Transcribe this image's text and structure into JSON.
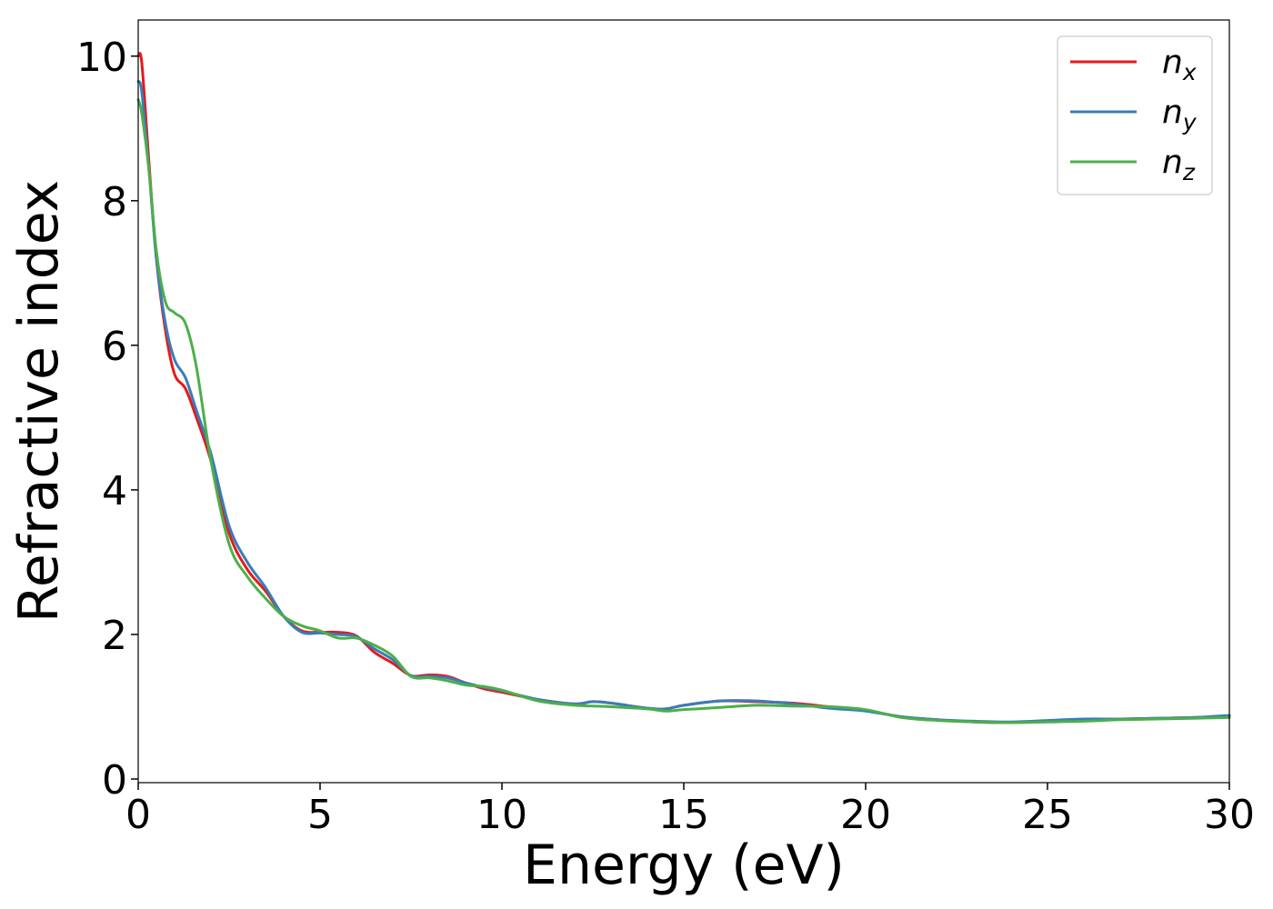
{
  "chart_data": {
    "type": "line",
    "xlabel": "Energy (eV)",
    "ylabel": "Refractive index",
    "xlim": [
      0,
      30
    ],
    "ylim": [
      -0.05,
      10.5
    ],
    "xticks": [
      0,
      5,
      10,
      15,
      20,
      25,
      30
    ],
    "yticks": [
      0,
      2,
      4,
      6,
      8,
      10
    ],
    "x_tick_labels": [
      "0",
      "5",
      "10",
      "15",
      "20",
      "25",
      "30"
    ],
    "y_tick_labels": [
      "0",
      "2",
      "4",
      "6",
      "8",
      "10"
    ],
    "grid": false,
    "legend_position": "top-right",
    "series": [
      {
        "name": "n",
        "subscript": "x",
        "color": "#e41a1c",
        "x": [
          0,
          0.1,
          0.3,
          0.5,
          0.75,
          1.0,
          1.3,
          1.6,
          2.0,
          2.5,
          3.0,
          3.5,
          4.0,
          4.5,
          5.0,
          5.5,
          6.0,
          6.5,
          7.0,
          7.5,
          8.0,
          8.5,
          9.0,
          9.5,
          10.0,
          11.0,
          12.0,
          12.5,
          13.0,
          14.0,
          14.5,
          15.0,
          16.0,
          17.0,
          18.0,
          19.0,
          20.0,
          21.0,
          22.0,
          23.0,
          24.0,
          25.0,
          26.0,
          27.0,
          28.0,
          29.0,
          30.0
        ],
        "y": [
          10.0,
          9.9,
          8.5,
          7.2,
          6.2,
          5.6,
          5.4,
          5.0,
          4.4,
          3.4,
          2.9,
          2.6,
          2.25,
          2.05,
          2.03,
          2.03,
          1.98,
          1.75,
          1.6,
          1.43,
          1.44,
          1.42,
          1.33,
          1.25,
          1.2,
          1.1,
          1.04,
          1.07,
          1.05,
          0.98,
          0.97,
          1.02,
          1.08,
          1.07,
          1.05,
          1.0,
          0.95,
          0.86,
          0.82,
          0.79,
          0.78,
          0.8,
          0.82,
          0.83,
          0.84,
          0.85,
          0.87
        ]
      },
      {
        "name": "n",
        "subscript": "y",
        "color": "#377eb8",
        "x": [
          0,
          0.1,
          0.3,
          0.5,
          0.75,
          1.0,
          1.3,
          1.6,
          2.0,
          2.5,
          3.0,
          3.5,
          4.0,
          4.5,
          5.0,
          5.5,
          6.0,
          6.5,
          7.0,
          7.5,
          8.0,
          8.5,
          9.0,
          9.5,
          10.0,
          11.0,
          12.0,
          12.5,
          13.0,
          14.0,
          14.5,
          15.0,
          16.0,
          17.0,
          18.0,
          19.0,
          20.0,
          21.0,
          22.0,
          23.0,
          24.0,
          25.0,
          26.0,
          27.0,
          28.0,
          29.0,
          30.0
        ],
        "y": [
          9.65,
          9.5,
          8.4,
          7.2,
          6.3,
          5.8,
          5.55,
          5.1,
          4.5,
          3.5,
          3.0,
          2.65,
          2.25,
          2.03,
          2.02,
          2.0,
          1.97,
          1.8,
          1.65,
          1.43,
          1.42,
          1.4,
          1.33,
          1.27,
          1.22,
          1.1,
          1.04,
          1.07,
          1.05,
          0.98,
          0.97,
          1.02,
          1.08,
          1.08,
          1.04,
          0.98,
          0.94,
          0.86,
          0.82,
          0.8,
          0.79,
          0.81,
          0.83,
          0.83,
          0.84,
          0.85,
          0.88
        ]
      },
      {
        "name": "n",
        "subscript": "z",
        "color": "#4daf4a",
        "x": [
          0,
          0.1,
          0.3,
          0.5,
          0.75,
          1.0,
          1.3,
          1.6,
          2.0,
          2.5,
          3.0,
          3.5,
          4.0,
          4.5,
          5.0,
          5.5,
          6.0,
          6.5,
          7.0,
          7.5,
          8.0,
          8.5,
          9.0,
          9.5,
          10.0,
          11.0,
          12.0,
          12.5,
          13.0,
          14.0,
          14.5,
          15.0,
          16.0,
          17.0,
          18.0,
          19.0,
          20.0,
          21.0,
          22.0,
          23.0,
          24.0,
          25.0,
          26.0,
          27.0,
          28.0,
          29.0,
          30.0
        ],
        "y": [
          9.4,
          9.2,
          8.4,
          7.3,
          6.6,
          6.45,
          6.3,
          5.7,
          4.4,
          3.25,
          2.8,
          2.5,
          2.25,
          2.12,
          2.05,
          1.95,
          1.95,
          1.85,
          1.7,
          1.42,
          1.4,
          1.36,
          1.3,
          1.28,
          1.23,
          1.08,
          1.02,
          1.01,
          1.0,
          0.97,
          0.94,
          0.96,
          0.99,
          1.02,
          1.01,
          1.0,
          0.96,
          0.85,
          0.81,
          0.79,
          0.78,
          0.79,
          0.8,
          0.82,
          0.83,
          0.84,
          0.85
        ]
      }
    ]
  }
}
